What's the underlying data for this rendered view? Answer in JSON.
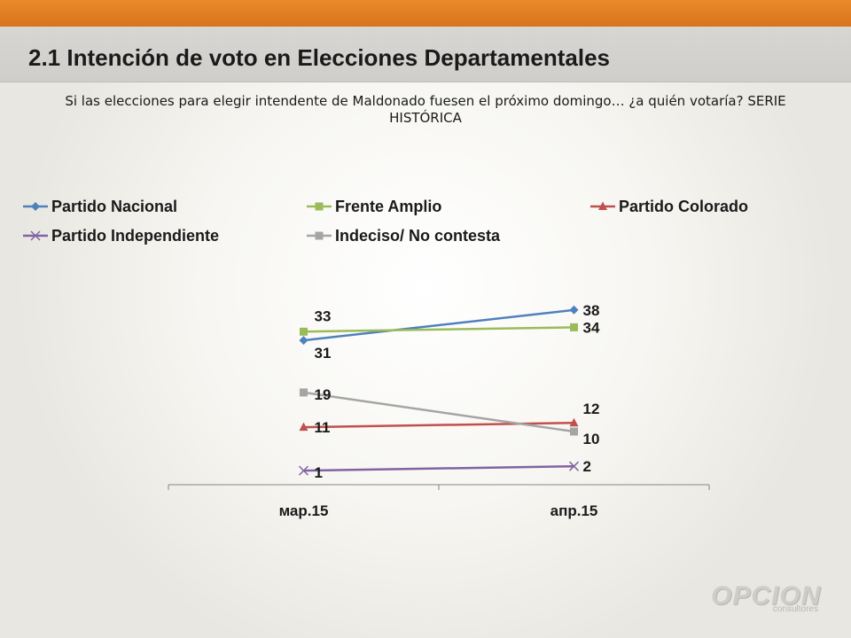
{
  "header": {
    "title": "2.1 Intención de voto en Elecciones Departamentales",
    "subtitle": "Si las elecciones para elegir intendente de Maldonado fuesen el próximo domingo… ¿a quién votaría? SERIE HISTÓRICA"
  },
  "colors": {
    "top_bar": "#e07d22",
    "title_bar": "#d3d2cf"
  },
  "chart_data": {
    "type": "line",
    "categories": [
      "мар.15",
      "апр.15"
    ],
    "series": [
      {
        "name": "Partido Nacional",
        "values": [
          31,
          38
        ],
        "labels": [
          "31",
          "38"
        ],
        "color": "#4f81bd",
        "marker": "diamond"
      },
      {
        "name": "Frente Amplio",
        "values": [
          33,
          34
        ],
        "labels": [
          "33",
          "34"
        ],
        "color": "#9bbb59",
        "marker": "square"
      },
      {
        "name": "Partido Colorado",
        "values": [
          11,
          12
        ],
        "labels": [
          "11",
          "12"
        ],
        "color": "#c0504d",
        "marker": "triangle"
      },
      {
        "name": "Partido Independiente",
        "values": [
          1,
          2
        ],
        "labels": [
          "1",
          "2"
        ],
        "color": "#8064a2",
        "marker": "x"
      },
      {
        "name": "Indeciso/ No contesta",
        "values": [
          19,
          10
        ],
        "labels": [
          "19",
          "10"
        ],
        "color": "#a5a5a5",
        "marker": "square"
      }
    ],
    "ylim": [
      0,
      40
    ],
    "legend": "top",
    "grid": false
  },
  "logo": {
    "text": "OPCION",
    "sub": "consultores"
  }
}
